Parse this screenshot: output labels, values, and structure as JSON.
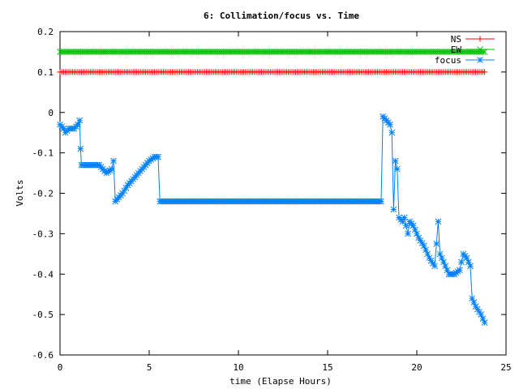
{
  "chart_data": {
    "type": "line",
    "title": "6: Collimation/focus vs. Time",
    "xlabel": "time (Elapse Hours)",
    "ylabel": "Volts",
    "xlim": [
      0,
      25
    ],
    "ylim": [
      -0.6,
      0.2
    ],
    "x_ticks": [
      "0",
      "5",
      "10",
      "15",
      "20",
      "25"
    ],
    "y_ticks": [
      "0.2",
      "0.1",
      "0",
      "-0.1",
      "-0.2",
      "-0.3",
      "-0.4",
      "-0.5",
      "-0.6"
    ],
    "grid": false,
    "legend_position": "top-right",
    "series": [
      {
        "name": "NS",
        "color": "#ff0000",
        "marker": "plus",
        "points": [
          [
            0,
            0.1
          ],
          [
            23.8,
            0.1
          ]
        ]
      },
      {
        "name": "EW",
        "color": "#00c000",
        "marker": "x",
        "points": [
          [
            0,
            0.15
          ],
          [
            23.8,
            0.15
          ]
        ]
      },
      {
        "name": "focus",
        "color": "#0080ff",
        "marker": "star",
        "points": [
          [
            0,
            -0.03
          ],
          [
            0.2,
            -0.04
          ],
          [
            0.3,
            -0.05
          ],
          [
            0.5,
            -0.04
          ],
          [
            0.8,
            -0.04
          ],
          [
            1.0,
            -0.03
          ],
          [
            1.1,
            -0.02
          ],
          [
            1.15,
            -0.09
          ],
          [
            1.2,
            -0.13
          ],
          [
            1.6,
            -0.13
          ],
          [
            2.2,
            -0.13
          ],
          [
            2.4,
            -0.14
          ],
          [
            2.6,
            -0.15
          ],
          [
            2.9,
            -0.14
          ],
          [
            3.0,
            -0.12
          ],
          [
            3.1,
            -0.22
          ],
          [
            3.3,
            -0.21
          ],
          [
            3.5,
            -0.2
          ],
          [
            3.8,
            -0.18
          ],
          [
            4.2,
            -0.16
          ],
          [
            4.6,
            -0.14
          ],
          [
            5.0,
            -0.12
          ],
          [
            5.3,
            -0.11
          ],
          [
            5.5,
            -0.11
          ],
          [
            5.6,
            -0.22
          ],
          [
            10.0,
            -0.22
          ],
          [
            15.0,
            -0.22
          ],
          [
            18.0,
            -0.22
          ],
          [
            18.1,
            -0.01
          ],
          [
            18.3,
            -0.02
          ],
          [
            18.5,
            -0.03
          ],
          [
            18.6,
            -0.05
          ],
          [
            18.7,
            -0.24
          ],
          [
            18.8,
            -0.12
          ],
          [
            18.9,
            -0.14
          ],
          [
            19.0,
            -0.26
          ],
          [
            19.2,
            -0.27
          ],
          [
            19.3,
            -0.26
          ],
          [
            19.5,
            -0.3
          ],
          [
            19.6,
            -0.27
          ],
          [
            19.8,
            -0.28
          ],
          [
            20.1,
            -0.31
          ],
          [
            20.4,
            -0.33
          ],
          [
            20.7,
            -0.36
          ],
          [
            21.0,
            -0.38
          ],
          [
            21.2,
            -0.27
          ],
          [
            21.3,
            -0.35
          ],
          [
            21.5,
            -0.37
          ],
          [
            21.8,
            -0.4
          ],
          [
            22.1,
            -0.4
          ],
          [
            22.4,
            -0.39
          ],
          [
            22.6,
            -0.35
          ],
          [
            22.8,
            -0.36
          ],
          [
            23.0,
            -0.38
          ],
          [
            23.1,
            -0.46
          ],
          [
            23.3,
            -0.48
          ],
          [
            23.6,
            -0.5
          ],
          [
            23.8,
            -0.52
          ]
        ]
      }
    ]
  }
}
